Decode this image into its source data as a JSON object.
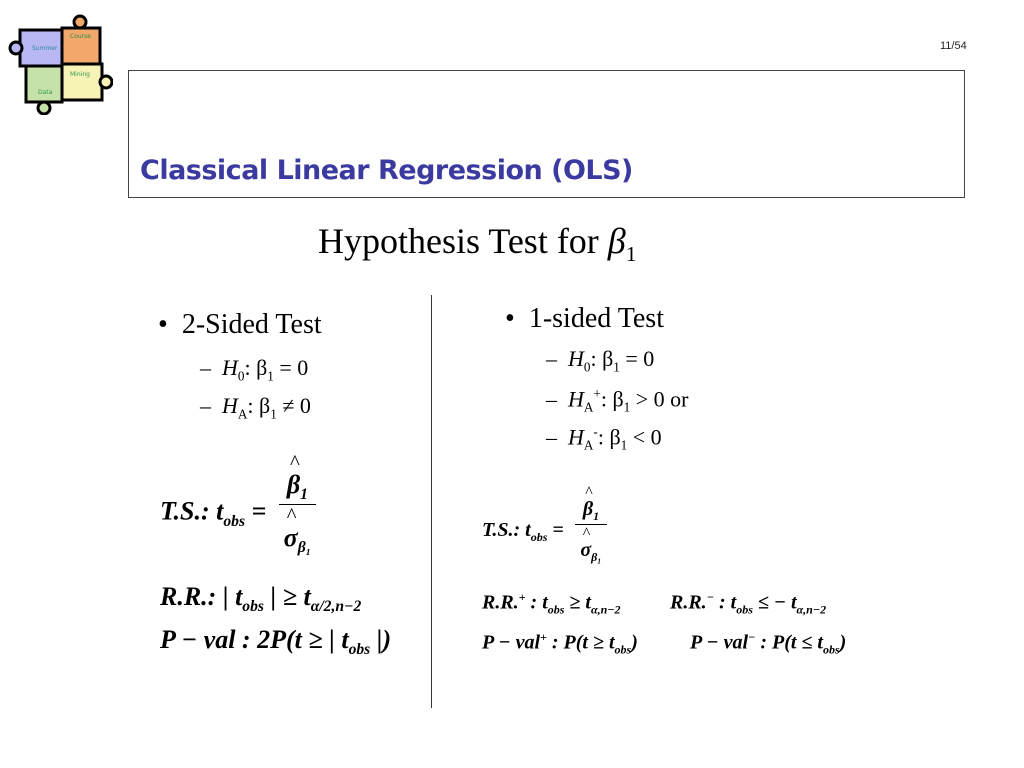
{
  "logo": {
    "pieces": [
      "Summer",
      "Course",
      "Data",
      "Mining"
    ]
  },
  "page_number": "11/54",
  "header": {
    "title": "Classical Linear Regression (OLS)"
  },
  "main_title": {
    "text": "Hypothesis Test for ",
    "symbol": "β",
    "sub": "1"
  },
  "left": {
    "bullet": "2-Sided Test",
    "h0": {
      "h": "H",
      "hsub": "0",
      "rest": ": β",
      "bsub": "1",
      "cond": " = 0"
    },
    "ha": {
      "h": "H",
      "hsub": "A",
      "rest": ": β",
      "bsub": "1",
      "cond": " ≠ 0"
    },
    "ts": {
      "lhs": "T.S.: t",
      "lhs_sub": "obs",
      "eq": " = ",
      "num": "β",
      "num_sub": "1",
      "den": "σ",
      "den_sub": "β₁"
    },
    "rr": {
      "a": "R.R.: | t",
      "a_sub": "obs",
      "b": " | ≥ t",
      "b_sub": "α/2,n−2"
    },
    "pval": {
      "a": "P − val : 2P(t ≥ | t",
      "a_sub": "obs",
      "b": " |)"
    }
  },
  "right": {
    "bullet": "1-sided Test",
    "h0": {
      "h": "H",
      "hsub": "0",
      "rest": ": β",
      "bsub": "1",
      "cond": " = 0"
    },
    "hap": {
      "h": "H",
      "hsub": "A",
      "hsup": "+",
      "rest": ": β",
      "bsub": "1",
      "cond": " > 0  or"
    },
    "ham": {
      "h": "H",
      "hsub": "A",
      "hsup": "-",
      "rest": ": β",
      "bsub": "1",
      "cond": " < 0"
    },
    "ts": {
      "lhs": "T.S.: t",
      "lhs_sub": "obs",
      "eq": " = ",
      "num": "β",
      "num_sub": "1",
      "den": "σ",
      "den_sub": "β₁"
    },
    "rrp": {
      "a": "R.R.",
      "a_sup": "+",
      "b": " : t",
      "b_sub": "obs",
      "c": " ≥ t",
      "c_sub": "α,n−2"
    },
    "rrm": {
      "a": "R.R.",
      "a_sup": "−",
      "b": " : t",
      "b_sub": "obs",
      "c": " ≤ − t",
      "c_sub": "α,n−2"
    },
    "pvp": {
      "a": "P − val",
      "a_sup": "+",
      "b": " : P(t ≥ t",
      "b_sub": "obs",
      "c": ")"
    },
    "pvm": {
      "a": "P − val",
      "a_sup": "−",
      "b": " : P(t ≤ t",
      "b_sub": "obs",
      "c": ")"
    }
  }
}
